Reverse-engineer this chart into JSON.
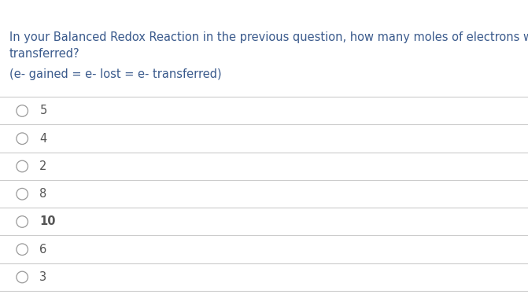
{
  "question_line1": "In your Balanced Redox Reaction in the previous question, how many moles of electrons were",
  "question_line2": "transferred?",
  "subtext": "(e- gained = e- lost = e- transferred)",
  "options": [
    "5",
    "4",
    "2",
    "8",
    "10",
    "6",
    "3"
  ],
  "question_color": "#3a5a8c",
  "subtext_color": "#3a5a8c",
  "option_color": "#555555",
  "bg_color": "#ffffff",
  "line_color": "#cccccc",
  "circle_color": "#999999",
  "font_size_question": 10.5,
  "font_size_option": 10.5,
  "font_size_subtext": 10.5,
  "fig_width": 6.71,
  "fig_height": 3.79,
  "dpi": 100
}
